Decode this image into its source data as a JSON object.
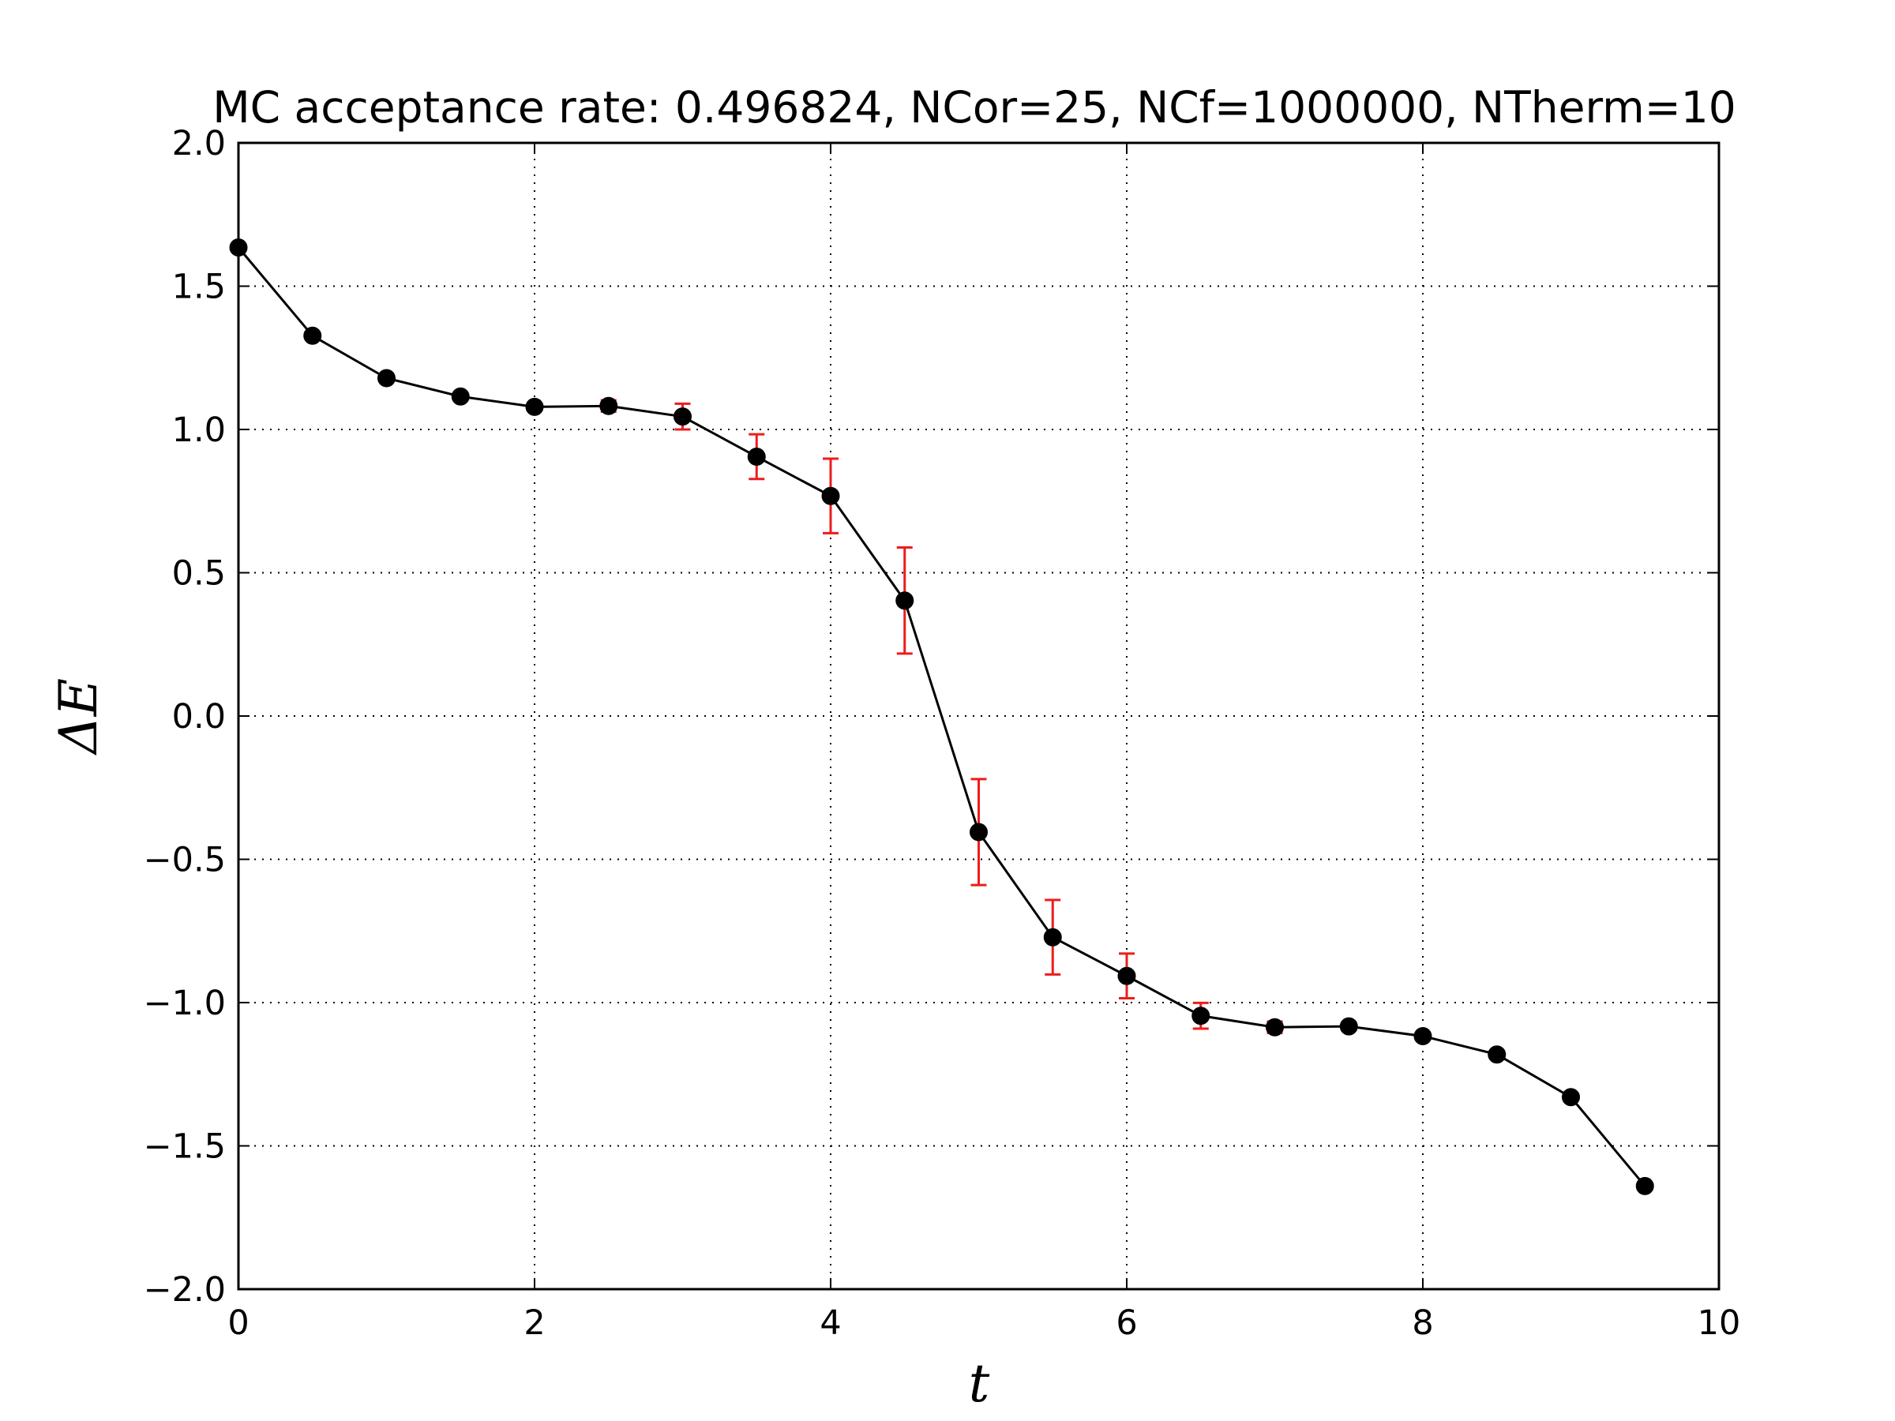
{
  "chart_data": {
    "type": "line",
    "title": "MC acceptance rate: 0.496824, NCor=25, NCf=1000000, NTherm=10",
    "xlabel": "t",
    "ylabel": "ΔE",
    "xlim": [
      0,
      10
    ],
    "ylim": [
      -2.0,
      2.0
    ],
    "xticks": [
      0,
      2,
      4,
      6,
      8,
      10
    ],
    "xtick_labels": [
      "0",
      "2",
      "4",
      "6",
      "8",
      "10"
    ],
    "yticks": [
      2.0,
      1.5,
      1.0,
      0.5,
      0.0,
      -0.5,
      -1.0,
      -1.5,
      -2.0
    ],
    "ytick_labels": [
      "2.0",
      "1.5",
      "1.0",
      "0.5",
      "0.0",
      "−0.5",
      "−1.0",
      "−1.5",
      "−2.0"
    ],
    "grid": true,
    "colors": {
      "line": "#000000",
      "marker": "#000000",
      "errorbar": "#ee1c1c"
    },
    "x": [
      0.0,
      0.5,
      1.0,
      1.5,
      2.0,
      2.5,
      3.0,
      3.5,
      4.0,
      4.5,
      5.0,
      5.5,
      6.0,
      6.5,
      7.0,
      7.5,
      8.0,
      8.5,
      9.0,
      9.5
    ],
    "y": [
      1.635,
      1.327,
      1.179,
      1.115,
      1.079,
      1.082,
      1.045,
      0.905,
      0.768,
      0.403,
      -0.405,
      -0.772,
      -0.907,
      -1.046,
      -1.086,
      -1.083,
      -1.117,
      -1.181,
      -1.33,
      -1.64
    ],
    "yerr": [
      0.003,
      0.004,
      0.005,
      0.008,
      0.012,
      0.02,
      0.045,
      0.078,
      0.13,
      0.185,
      0.185,
      0.13,
      0.078,
      0.045,
      0.02,
      0.012,
      0.008,
      0.005,
      0.004,
      0.003
    ]
  }
}
